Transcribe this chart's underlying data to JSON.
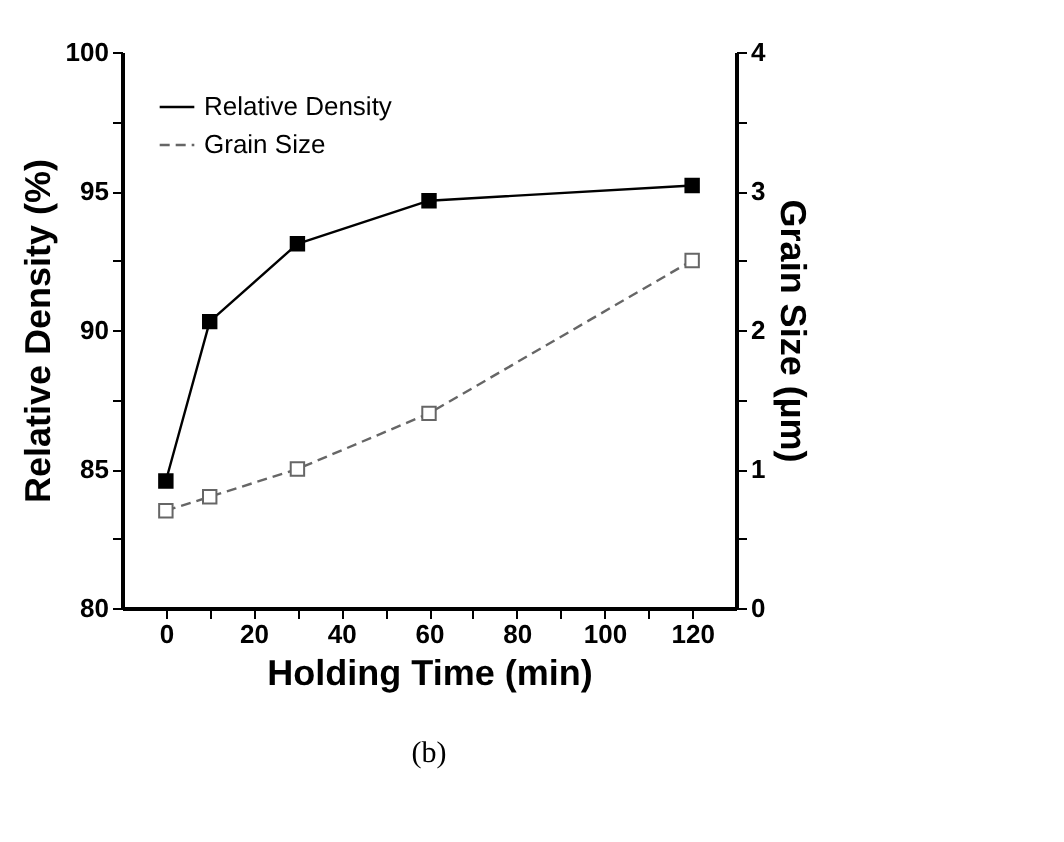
{
  "chart_data": {
    "type": "line",
    "xlabel": "Holding Time (min)",
    "ylabel": "Relative Density (%)",
    "y2label": "Grain Size (µm)",
    "annotations": [
      "(b)"
    ],
    "x": [
      0,
      10,
      30,
      60,
      120
    ],
    "series": [
      {
        "name": "Relative Density",
        "color": "#000000",
        "values": [
          84.57,
          90.3,
          93.1,
          94.65,
          95.2
        ],
        "line_style": "solid",
        "marker": "square"
      },
      {
        "name": "Grain Size",
        "color": "#666666",
        "values": [
          0.7,
          0.8,
          1.0,
          1.4,
          2.5
        ],
        "axis": "y2",
        "line_style": "dashed",
        "marker": "square"
      }
    ],
    "xlim": [
      -10,
      130
    ],
    "xticks": [
      0,
      {
        "value": 10,
        "label": null
      },
      20,
      {
        "value": 30,
        "label": null
      },
      40,
      {
        "value": 50,
        "label": null
      },
      60,
      {
        "value": 70,
        "label": null
      },
      80,
      {
        "value": 90,
        "label": null
      },
      100,
      {
        "value": 110,
        "label": null
      },
      120
    ],
    "ylim": [
      80,
      100
    ],
    "yticks": [
      80,
      {
        "value": 82.5,
        "label": null
      },
      85,
      {
        "value": 87.5,
        "label": null
      },
      90,
      {
        "value": 92.5,
        "label": null
      },
      95,
      {
        "value": 97.5,
        "label": null
      },
      100
    ],
    "y2lim": [
      0,
      4
    ],
    "y2ticks": [
      0,
      {
        "value": 0.5,
        "label": null
      },
      1,
      {
        "value": 1.5,
        "label": null
      },
      2,
      {
        "value": 2.5,
        "label": null
      },
      3,
      {
        "value": 3.5,
        "label": null
      },
      4
    ],
    "grid": false,
    "legend": "top left"
  }
}
